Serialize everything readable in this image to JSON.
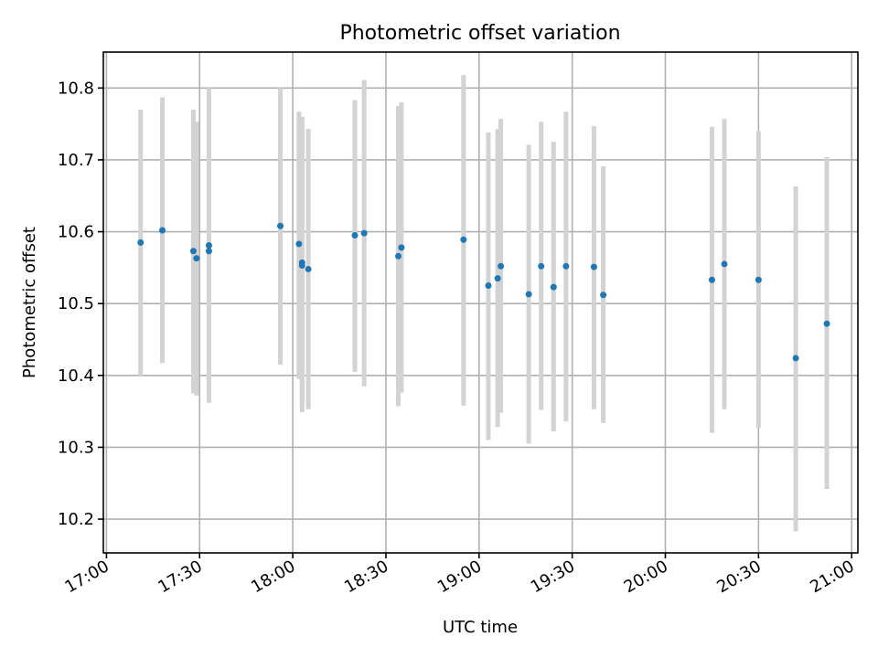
{
  "chart_data": {
    "type": "scatter",
    "title": "Photometric offset variation",
    "xlabel": "UTC time",
    "ylabel": "Photometric offset",
    "x_tick_labels": [
      "17:00",
      "17:30",
      "18:00",
      "18:30",
      "19:00",
      "19:30",
      "20:00",
      "20:30",
      "21:00"
    ],
    "y_tick_labels": [
      "10.2",
      "10.3",
      "10.4",
      "10.5",
      "10.6",
      "10.7",
      "10.8"
    ],
    "xlim": [
      "16:59",
      "21:02"
    ],
    "ylim": [
      10.153,
      10.85
    ],
    "grid": true,
    "colors": {
      "point": "#1f77b4",
      "errorbar": "#d3d3d3",
      "grid": "#b0b0b0"
    },
    "series": [
      {
        "points": [
          {
            "x": "17:11",
            "y": 10.585,
            "ylow": 10.4,
            "yhigh": 10.77
          },
          {
            "x": "17:18",
            "y": 10.602,
            "ylow": 10.417,
            "yhigh": 10.787
          },
          {
            "x": "17:28",
            "y": 10.573,
            "ylow": 10.375,
            "yhigh": 10.77
          },
          {
            "x": "17:29",
            "y": 10.563,
            "ylow": 10.372,
            "yhigh": 10.753
          },
          {
            "x": "17:33",
            "y": 10.573,
            "ylow": 10.362,
            "yhigh": 10.772
          },
          {
            "x": "17:33",
            "y": 10.581,
            "ylow": 10.362,
            "yhigh": 10.8
          },
          {
            "x": "17:56",
            "y": 10.608,
            "ylow": 10.415,
            "yhigh": 10.8
          },
          {
            "x": "18:02",
            "y": 10.583,
            "ylow": 10.395,
            "yhigh": 10.767
          },
          {
            "x": "18:03",
            "y": 10.553,
            "ylow": 10.349,
            "yhigh": 10.76
          },
          {
            "x": "18:03",
            "y": 10.557,
            "ylow": 10.36,
            "yhigh": 10.757
          },
          {
            "x": "18:05",
            "y": 10.548,
            "ylow": 10.353,
            "yhigh": 10.743
          },
          {
            "x": "18:20",
            "y": 10.595,
            "ylow": 10.405,
            "yhigh": 10.783
          },
          {
            "x": "18:23",
            "y": 10.598,
            "ylow": 10.385,
            "yhigh": 10.811
          },
          {
            "x": "18:34",
            "y": 10.566,
            "ylow": 10.357,
            "yhigh": 10.775
          },
          {
            "x": "18:35",
            "y": 10.578,
            "ylow": 10.376,
            "yhigh": 10.78
          },
          {
            "x": "18:55",
            "y": 10.589,
            "ylow": 10.358,
            "yhigh": 10.818
          },
          {
            "x": "19:03",
            "y": 10.525,
            "ylow": 10.31,
            "yhigh": 10.738
          },
          {
            "x": "19:06",
            "y": 10.535,
            "ylow": 10.328,
            "yhigh": 10.743
          },
          {
            "x": "19:07",
            "y": 10.552,
            "ylow": 10.348,
            "yhigh": 10.757
          },
          {
            "x": "19:16",
            "y": 10.513,
            "ylow": 10.305,
            "yhigh": 10.721
          },
          {
            "x": "19:20",
            "y": 10.552,
            "ylow": 10.352,
            "yhigh": 10.753
          },
          {
            "x": "19:24",
            "y": 10.523,
            "ylow": 10.322,
            "yhigh": 10.725
          },
          {
            "x": "19:28",
            "y": 10.552,
            "ylow": 10.336,
            "yhigh": 10.767
          },
          {
            "x": "19:37",
            "y": 10.551,
            "ylow": 10.353,
            "yhigh": 10.747
          },
          {
            "x": "19:40",
            "y": 10.512,
            "ylow": 10.334,
            "yhigh": 10.691
          },
          {
            "x": "20:15",
            "y": 10.533,
            "ylow": 10.32,
            "yhigh": 10.746
          },
          {
            "x": "20:19",
            "y": 10.555,
            "ylow": 10.353,
            "yhigh": 10.757
          },
          {
            "x": "20:30",
            "y": 10.533,
            "ylow": 10.327,
            "yhigh": 10.74
          },
          {
            "x": "20:42",
            "y": 10.424,
            "ylow": 10.183,
            "yhigh": 10.663
          },
          {
            "x": "20:52",
            "y": 10.472,
            "ylow": 10.242,
            "yhigh": 10.704
          }
        ]
      }
    ]
  }
}
